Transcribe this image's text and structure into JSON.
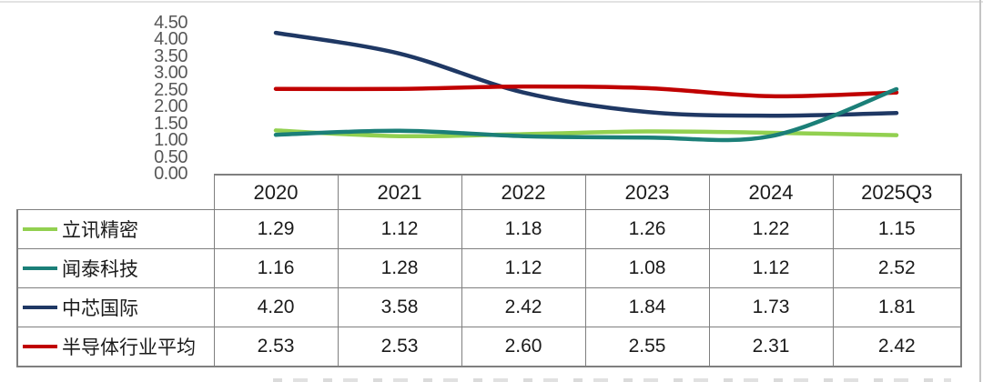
{
  "chart_data": {
    "type": "line",
    "title": "",
    "xlabel": "",
    "ylabel": "",
    "categories": [
      "2020",
      "2021",
      "2022",
      "2023",
      "2024",
      "2025Q3"
    ],
    "series": [
      {
        "name": "立讯精密",
        "color": "#92d050",
        "values": [
          1.29,
          1.12,
          1.18,
          1.26,
          1.22,
          1.15
        ]
      },
      {
        "name": "闻泰科技",
        "color": "#1b7f78",
        "values": [
          1.16,
          1.28,
          1.12,
          1.08,
          1.12,
          2.52
        ]
      },
      {
        "name": "中芯国际",
        "color": "#1f3864",
        "values": [
          4.2,
          3.58,
          2.42,
          1.84,
          1.73,
          1.81
        ]
      },
      {
        "name": "半导体行业平均",
        "color": "#c00000",
        "values": [
          2.53,
          2.53,
          2.6,
          2.55,
          2.31,
          2.42
        ]
      }
    ],
    "draw_order": [
      0,
      2,
      3,
      1
    ],
    "ylim": [
      0,
      4.5
    ],
    "yticks": [
      "4.50",
      "4.00",
      "3.50",
      "3.00",
      "2.50",
      "2.00",
      "1.50",
      "1.00",
      "0.50",
      "0.00"
    ],
    "grid": false,
    "smoothed": true,
    "legend_position": "table-first-column"
  },
  "table": {
    "corner_label": "",
    "header": [
      "2020",
      "2021",
      "2022",
      "2023",
      "2024",
      "2025Q3"
    ],
    "rows": [
      {
        "label": "立讯精密",
        "color": "#92d050",
        "values": [
          "1.29",
          "1.12",
          "1.18",
          "1.26",
          "1.22",
          "1.15"
        ]
      },
      {
        "label": "闻泰科技",
        "color": "#1b7f78",
        "values": [
          "1.16",
          "1.28",
          "1.12",
          "1.08",
          "1.12",
          "2.52"
        ]
      },
      {
        "label": "中芯国际",
        "color": "#1f3864",
        "values": [
          "4.20",
          "3.58",
          "2.42",
          "1.84",
          "1.73",
          "1.81"
        ]
      },
      {
        "label": "半导体行业平均",
        "color": "#c00000",
        "values": [
          "2.53",
          "2.53",
          "2.60",
          "2.55",
          "2.31",
          "2.42"
        ]
      }
    ]
  }
}
